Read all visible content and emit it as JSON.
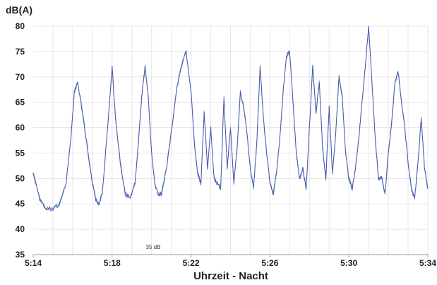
{
  "chart_data": {
    "type": "line",
    "ylabel": "dB(A)",
    "xlabel": "Uhrzeit - Nacht",
    "ylim": [
      35,
      80
    ],
    "xlim": [
      "5:14",
      "5:34"
    ],
    "y_ticks": [
      "35",
      "40",
      "45",
      "50",
      "55",
      "60",
      "65",
      "70",
      "75",
      "80"
    ],
    "x_ticks": [
      "5:14",
      "5:18",
      "5:22",
      "5:26",
      "5:30",
      "5:34"
    ],
    "grid": true,
    "annotation": {
      "text": "35 dB",
      "x": "5:20:05",
      "y": 36.5
    },
    "colors": {
      "main": "#4a57b8",
      "accent": "#2a8b6a",
      "highlight": "#3bbfe0"
    },
    "series": [
      {
        "x": [
          "5:14:00",
          "5:14:20",
          "5:14:40",
          "5:15:00",
          "5:15:20",
          "5:15:40",
          "5:15:55",
          "5:16:05",
          "5:16:15",
          "5:16:30",
          "5:16:45",
          "5:17:00",
          "5:17:10",
          "5:17:20",
          "5:17:30",
          "5:17:40",
          "5:17:50",
          "5:18:00",
          "5:18:10",
          "5:18:25",
          "5:18:40",
          "5:18:55",
          "5:19:10",
          "5:19:20",
          "5:19:30",
          "5:19:40",
          "5:19:50",
          "5:20:00",
          "5:20:10",
          "5:20:20",
          "5:20:30",
          "5:20:45",
          "5:21:00",
          "5:21:15",
          "5:21:30",
          "5:21:45",
          "5:22:00",
          "5:22:10",
          "5:22:20",
          "5:22:30",
          "5:22:40",
          "5:22:50",
          "5:23:00",
          "5:23:10",
          "5:23:20",
          "5:23:30",
          "5:23:40",
          "5:23:50",
          "5:24:00",
          "5:24:10",
          "5:24:20",
          "5:24:30",
          "5:24:40",
          "5:24:50",
          "5:25:00",
          "5:25:10",
          "5:25:20",
          "5:25:30",
          "5:25:40",
          "5:25:50",
          "5:26:00",
          "5:26:10",
          "5:26:20",
          "5:26:30",
          "5:26:40",
          "5:26:50",
          "5:27:00",
          "5:27:10",
          "5:27:20",
          "5:27:30",
          "5:27:40",
          "5:27:50",
          "5:28:00",
          "5:28:10",
          "5:28:20",
          "5:28:30",
          "5:28:40",
          "5:28:50",
          "5:29:00",
          "5:29:10",
          "5:29:20",
          "5:29:30",
          "5:29:40",
          "5:29:50",
          "5:30:00",
          "5:30:10",
          "5:30:20",
          "5:30:30",
          "5:30:40",
          "5:30:50",
          "5:31:00",
          "5:31:10",
          "5:31:20",
          "5:31:30",
          "5:31:40",
          "5:31:50",
          "5:32:00",
          "5:32:10",
          "5:32:20",
          "5:32:30",
          "5:32:40",
          "5:32:50",
          "5:33:00",
          "5:33:10",
          "5:33:20",
          "5:33:30",
          "5:33:40",
          "5:33:50",
          "5:34:00"
        ],
        "y": [
          51,
          46,
          44,
          44,
          45,
          49,
          58,
          67,
          69,
          63,
          56,
          49,
          46,
          45,
          47,
          55,
          63,
          72,
          62,
          53,
          47,
          46,
          49,
          57,
          66,
          72,
          66,
          55,
          49,
          47,
          47,
          52,
          59,
          67,
          72,
          75,
          67,
          57,
          51,
          49,
          63,
          52,
          60,
          50,
          49,
          48,
          66,
          52,
          60,
          49,
          56,
          67,
          64,
          59,
          52,
          48,
          57,
          72,
          62,
          55,
          49,
          47,
          51,
          58,
          67,
          74,
          75,
          65,
          55,
          50,
          52,
          48,
          60,
          72,
          63,
          69,
          56,
          50,
          64,
          51,
          59,
          70,
          66,
          55,
          50,
          48,
          52,
          58,
          65,
          72,
          80,
          69,
          58,
          50,
          50,
          47,
          55,
          61,
          69,
          71,
          65,
          60,
          53,
          48,
          46,
          53,
          62,
          52,
          48
        ]
      }
    ]
  }
}
